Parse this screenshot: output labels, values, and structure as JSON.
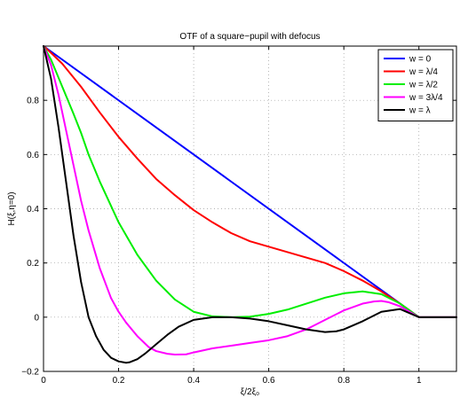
{
  "chart_data": {
    "type": "line",
    "title": "OTF of a square−pupil with defocus",
    "xlabel": "ξ/2ξ₀",
    "ylabel": "H(ξ,η=0)",
    "xlim": [
      0,
      1.1
    ],
    "ylim": [
      -0.2,
      1.0
    ],
    "xticks": [
      0,
      0.2,
      0.4,
      0.6,
      0.8,
      1
    ],
    "xtick_labels": [
      "0",
      "0.2",
      "0.4",
      "0.6",
      "0.8",
      "1"
    ],
    "yticks": [
      -0.2,
      0,
      0.2,
      0.4,
      0.6,
      0.8
    ],
    "ytick_labels": [
      "−0.2",
      "0",
      "0.2",
      "0.4",
      "0.6",
      "0.8"
    ],
    "grid": true,
    "grid_style": "dotted",
    "legend_position": "top-right",
    "series": [
      {
        "name": "w = 0",
        "color": "#0000ff",
        "x": [
          0,
          1,
          1.1
        ],
        "y": [
          1,
          0,
          0
        ]
      },
      {
        "name": "w = λ/4",
        "color": "#ff0000",
        "x": [
          0,
          0.02,
          0.05,
          0.1,
          0.15,
          0.2,
          0.25,
          0.3,
          0.35,
          0.4,
          0.45,
          0.5,
          0.55,
          0.6,
          0.65,
          0.7,
          0.75,
          0.8,
          0.85,
          0.9,
          0.95,
          1,
          1.1
        ],
        "y": [
          1,
          0.975,
          0.935,
          0.85,
          0.755,
          0.665,
          0.585,
          0.51,
          0.45,
          0.395,
          0.35,
          0.31,
          0.28,
          0.26,
          0.24,
          0.22,
          0.2,
          0.17,
          0.135,
          0.095,
          0.05,
          0,
          0
        ]
      },
      {
        "name": "w = λ/2",
        "color": "#00ee00",
        "x": [
          0,
          0.02,
          0.05,
          0.08,
          0.1,
          0.12,
          0.15,
          0.18,
          0.2,
          0.25,
          0.3,
          0.35,
          0.4,
          0.45,
          0.5,
          0.55,
          0.6,
          0.65,
          0.7,
          0.75,
          0.8,
          0.85,
          0.9,
          0.95,
          1,
          1.1
        ],
        "y": [
          1,
          0.95,
          0.85,
          0.75,
          0.68,
          0.6,
          0.5,
          0.41,
          0.35,
          0.23,
          0.135,
          0.065,
          0.02,
          0.003,
          0,
          0.002,
          0.012,
          0.028,
          0.05,
          0.072,
          0.088,
          0.095,
          0.085,
          0.05,
          0,
          0
        ]
      },
      {
        "name": "w = 3λ/4",
        "color": "#ff00ff",
        "x": [
          0,
          0.02,
          0.04,
          0.06,
          0.08,
          0.1,
          0.12,
          0.15,
          0.18,
          0.2,
          0.22,
          0.25,
          0.28,
          0.3,
          0.33,
          0.35,
          0.38,
          0.4,
          0.45,
          0.5,
          0.55,
          0.6,
          0.65,
          0.7,
          0.75,
          0.8,
          0.85,
          0.88,
          0.9,
          0.92,
          0.95,
          1,
          1.1
        ],
        "y": [
          1,
          0.93,
          0.82,
          0.69,
          0.56,
          0.43,
          0.32,
          0.18,
          0.07,
          0.02,
          -0.02,
          -0.07,
          -0.11,
          -0.125,
          -0.135,
          -0.138,
          -0.137,
          -0.13,
          -0.115,
          -0.105,
          -0.095,
          -0.085,
          -0.07,
          -0.045,
          -0.01,
          0.025,
          0.05,
          0.058,
          0.06,
          0.055,
          0.04,
          0,
          0
        ]
      },
      {
        "name": "w = λ",
        "color": "#000000",
        "x": [
          0,
          0.02,
          0.04,
          0.06,
          0.08,
          0.1,
          0.12,
          0.14,
          0.16,
          0.18,
          0.2,
          0.22,
          0.23,
          0.25,
          0.27,
          0.3,
          0.33,
          0.36,
          0.4,
          0.45,
          0.5,
          0.55,
          0.6,
          0.65,
          0.7,
          0.75,
          0.78,
          0.8,
          0.85,
          0.9,
          0.95,
          1,
          1.1
        ],
        "y": [
          1,
          0.88,
          0.7,
          0.5,
          0.3,
          0.13,
          0,
          -0.07,
          -0.12,
          -0.15,
          -0.163,
          -0.168,
          -0.166,
          -0.155,
          -0.135,
          -0.1,
          -0.065,
          -0.035,
          -0.01,
          0,
          0,
          -0.005,
          -0.015,
          -0.03,
          -0.045,
          -0.055,
          -0.052,
          -0.045,
          -0.015,
          0.02,
          0.03,
          0,
          0
        ]
      }
    ]
  }
}
